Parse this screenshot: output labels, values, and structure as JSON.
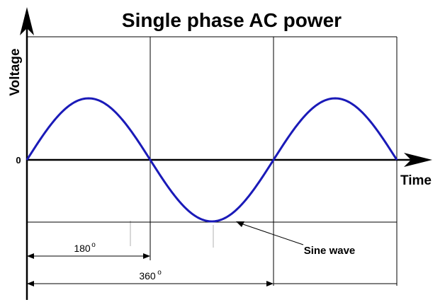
{
  "title": "Single phase AC power",
  "y_axis_label": "Voltage",
  "x_axis_label": "Time",
  "zero_label": "0",
  "wave_label": "Sine wave",
  "dim_half": {
    "value": "180",
    "sup": "o"
  },
  "dim_full": {
    "value": "360",
    "sup": "o"
  },
  "colors": {
    "wave": "#1a1ab8",
    "axis": "#000000"
  },
  "wave": {
    "cycles": 1.5,
    "phase_start_deg": 0
  }
}
